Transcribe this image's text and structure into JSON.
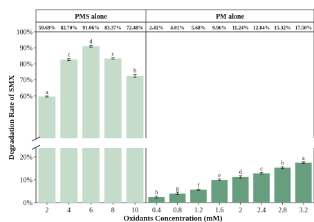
{
  "chart_data": {
    "type": "bar",
    "xlabel": "Oxidants Concentration (mM)",
    "ylabel": "Degradation Rate of SMX",
    "colors": {
      "pms": "#c5dccb",
      "pm": "#679e7e",
      "frame": "#333333"
    },
    "panels": [
      {
        "header": "PMS alone",
        "categories": [
          "2",
          "4",
          "6",
          "8",
          "10"
        ],
        "values": [
          59.69,
          82.7,
          91.06,
          83.37,
          72.48
        ],
        "errors": [
          0.3,
          0.6,
          0.6,
          0.4,
          1.0
        ],
        "value_labels": [
          "59.69%",
          "82.70%",
          "91.06%",
          "83.37%",
          "72.48%"
        ],
        "letters": [
          "a",
          "c",
          "d",
          "c",
          "b"
        ]
      },
      {
        "header": "PM alone",
        "categories": [
          "0.4",
          "0.8",
          "1.2",
          "1.6",
          "2",
          "2.4",
          "2.8",
          "3.2"
        ],
        "values": [
          2.41,
          4.01,
          5.68,
          9.96,
          11.24,
          12.84,
          15.32,
          17.5
        ],
        "errors": [
          0.5,
          0.5,
          0.3,
          0.4,
          0.6,
          0.4,
          0.4,
          0.4
        ],
        "value_labels": [
          "2.41%",
          "4.01%",
          "5.68%",
          "9.96%",
          "11.24%",
          "12.84%",
          "15.32%",
          "17.50%"
        ],
        "letters": [
          "h",
          "g",
          "f",
          "e",
          "d",
          "c",
          "b",
          "a"
        ]
      }
    ],
    "y_ticks_upper": [
      "60%",
      "70%",
      "80%",
      "90%",
      "100%"
    ],
    "y_ticks_lower": [
      "0%",
      "10%",
      "20%"
    ],
    "y_break": [
      25,
      55
    ],
    "ylim": [
      0,
      100
    ]
  }
}
